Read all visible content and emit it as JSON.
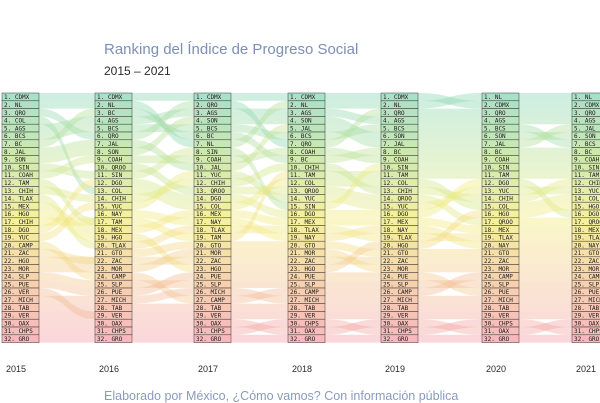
{
  "title": "Ranking del Índice de Progreso Social",
  "subtitle": "2015 – 2021",
  "footer": "Elaborado por México, ¿Cómo vamos? Con información pública",
  "chart_data": {
    "type": "bump",
    "title": "Ranking del Índice de Progreso Social",
    "subtitle": "2015 – 2021",
    "x": [
      "2015",
      "2016",
      "2017",
      "2018",
      "2019",
      "2020",
      "2021"
    ],
    "rank_count": 32,
    "columns": [
      {
        "year": "2015",
        "ranking": [
          "CDMX",
          "NL",
          "QRO",
          "COL",
          "AGS",
          "BCS",
          "BC",
          "JAL",
          "SON",
          "SIN",
          "COAH",
          "TAM",
          "CHIH",
          "TLAX",
          "MEX",
          "HGO",
          "CHIH",
          "DGO",
          "YUC",
          "CAMP",
          "ZAC",
          "HGO",
          "MOR",
          "SLP",
          "PUE",
          "VER",
          "MICH",
          "TAB",
          "VER",
          "OAX",
          "CHPS",
          "GRO"
        ]
      },
      {
        "year": "2016",
        "ranking": [
          "CDMX",
          "NL",
          "BC",
          "AGS",
          "BCS",
          "QRO",
          "JAL",
          "SON",
          "COAH",
          "QROO",
          "SIN",
          "DGO",
          "COL",
          "CHIH",
          "YUC",
          "NAY",
          "TAM",
          "MEX",
          "HGO",
          "TLAX",
          "GTO",
          "ZAC",
          "MOR",
          "CAMP",
          "SLP",
          "PUE",
          "MICH",
          "TAB",
          "VER",
          "OAX",
          "CHPS",
          "GRO"
        ]
      },
      {
        "year": "2017",
        "ranking": [
          "CDMX",
          "QRO",
          "AGS",
          "SON",
          "BCS",
          "BC",
          "NL",
          "SIN",
          "COAH",
          "JAL",
          "YUC",
          "CHIH",
          "QROO",
          "DGO",
          "COL",
          "MEX",
          "NAY",
          "TLAX",
          "TAM",
          "GTO",
          "MOR",
          "ZAC",
          "HGO",
          "PUE",
          "SLP",
          "MICH",
          "CAMP",
          "TAB",
          "VER",
          "OAX",
          "CHPS",
          "GRO"
        ]
      },
      {
        "year": "2018",
        "ranking": [
          "CDMX",
          "NL",
          "AGS",
          "SON",
          "JAL",
          "BCS",
          "QRO",
          "COAH",
          "BC",
          "CHIH",
          "TAM",
          "COL",
          "QROO",
          "YUC",
          "SIN",
          "DGO",
          "MEX",
          "TLAX",
          "NAY",
          "GTO",
          "MOR",
          "ZAC",
          "HGO",
          "PUE",
          "SLP",
          "CAMP",
          "MICH",
          "TAB",
          "VER",
          "CHPS",
          "OAX",
          "GRO"
        ]
      },
      {
        "year": "2019",
        "ranking": [
          "CDMX",
          "NL",
          "QRO",
          "AGS",
          "BCS",
          "SON",
          "JAL",
          "BC",
          "COAH",
          "SIN",
          "TAM",
          "COL",
          "CHIH",
          "QROO",
          "YUC",
          "DGO",
          "MEX",
          "NAY",
          "TLAX",
          "HGO",
          "GTO",
          "ZAC",
          "MOR",
          "PUE",
          "SLP",
          "CAMP",
          "MICH",
          "TAB",
          "VER",
          "OAX",
          "CHPS",
          "GRO"
        ]
      },
      {
        "year": "2020",
        "ranking": [
          "NL",
          "CDMX",
          "QRO",
          "AGS",
          "BCS",
          "SON",
          "JAL",
          "BC",
          "COAH",
          "SIN",
          "TAM",
          "DGO",
          "YUC",
          "CHIH",
          "COL",
          "HGO",
          "QROO",
          "MEX",
          "TLAX",
          "NAY",
          "GTO",
          "ZAC",
          "MOR",
          "CAMP",
          "SLP",
          "PUE",
          "MICH",
          "TAB",
          "VER",
          "CHPS",
          "OAX",
          "GRO"
        ]
      },
      {
        "year": "2021",
        "ranking": [
          "NL",
          "CDMX",
          "QRO",
          "AGS",
          "JAL",
          "SON",
          "BCS",
          "BC",
          "COAH",
          "SIN",
          "TAM",
          "CHIH",
          "YUC",
          "COL",
          "HGO",
          "DGO",
          "QROO",
          "MEX",
          "TLAX",
          "NAY",
          "GTO",
          "ZAC",
          "MOR",
          "CAMP",
          "SLP",
          "PUE",
          "MICH",
          "TAB",
          "VER",
          "OAX",
          "CHPS",
          "GRO"
        ]
      }
    ],
    "color_scale": [
      "#8ad7b4",
      "#f3ec7c",
      "#f4a0a8"
    ],
    "box_color": "#ffffff"
  }
}
